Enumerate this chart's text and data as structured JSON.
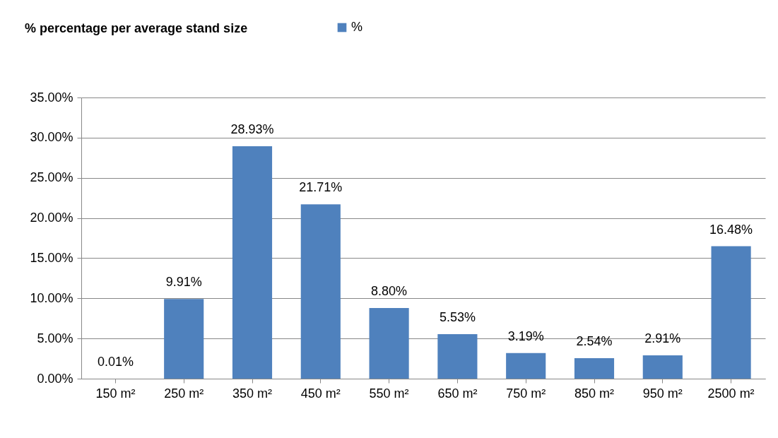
{
  "chart_data": {
    "type": "bar",
    "title": "% percentage per average stand size",
    "categories": [
      "150 m²",
      "250 m²",
      "350 m²",
      "450 m²",
      "550 m²",
      "650 m²",
      "750 m²",
      "850 m²",
      "950 m²",
      "2500 m²"
    ],
    "series": [
      {
        "name": "%",
        "color": "#4f81bd",
        "values": [
          0.01,
          9.91,
          28.93,
          21.71,
          8.8,
          5.53,
          3.19,
          2.54,
          2.91,
          16.48
        ],
        "value_labels": [
          "0.01%",
          "9.91%",
          "28.93%",
          "21.71%",
          "8.80%",
          "5.53%",
          "3.19%",
          "2.54%",
          "2.91%",
          "16.48%"
        ]
      }
    ],
    "ylim": [
      0,
      35
    ],
    "yticks": [
      {
        "value": 0,
        "label": "0.00%"
      },
      {
        "value": 5,
        "label": "5.00%"
      },
      {
        "value": 10,
        "label": "10.00%"
      },
      {
        "value": 15,
        "label": "15.00%"
      },
      {
        "value": 20,
        "label": "20.00%"
      },
      {
        "value": 25,
        "label": "25.00%"
      },
      {
        "value": 30,
        "label": "30.00%"
      },
      {
        "value": 35,
        "label": "35.00%"
      }
    ],
    "grid": "y",
    "legend": "top"
  }
}
